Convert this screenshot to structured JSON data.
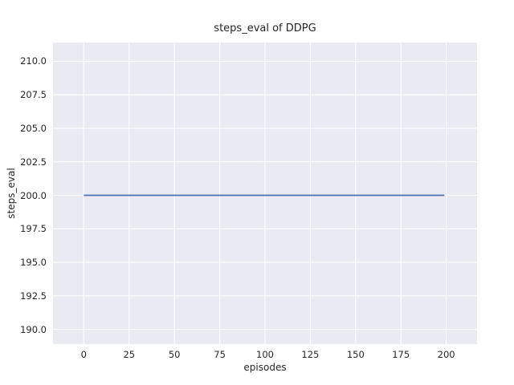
{
  "chart_data": {
    "type": "line",
    "title": "steps_eval of DDPG",
    "xlabel": "episodes",
    "ylabel": "steps_eval",
    "series": [
      {
        "name": "steps_eval",
        "x": [
          0,
          199
        ],
        "y": [
          200,
          200
        ]
      }
    ],
    "xlim": [
      -17,
      217
    ],
    "ylim": [
      188.9,
      211.4
    ],
    "xticks": [
      0,
      25,
      50,
      75,
      100,
      125,
      150,
      175,
      200
    ],
    "xtick_labels": [
      "0",
      "25",
      "50",
      "75",
      "100",
      "125",
      "150",
      "175",
      "200"
    ],
    "yticks": [
      190,
      192.5,
      195,
      197.5,
      200,
      202.5,
      205,
      207.5,
      210
    ],
    "ytick_labels": [
      "190.0",
      "192.5",
      "195.0",
      "197.5",
      "200.0",
      "202.5",
      "205.0",
      "207.5",
      "210.0"
    ],
    "grid": true,
    "legend": "none",
    "style": {
      "figure_background": "#ffffff",
      "plot_background": "#eaeaf2",
      "grid_color": "#ffffff",
      "line_color": "#4c72b0",
      "text_color": "#262626"
    }
  }
}
